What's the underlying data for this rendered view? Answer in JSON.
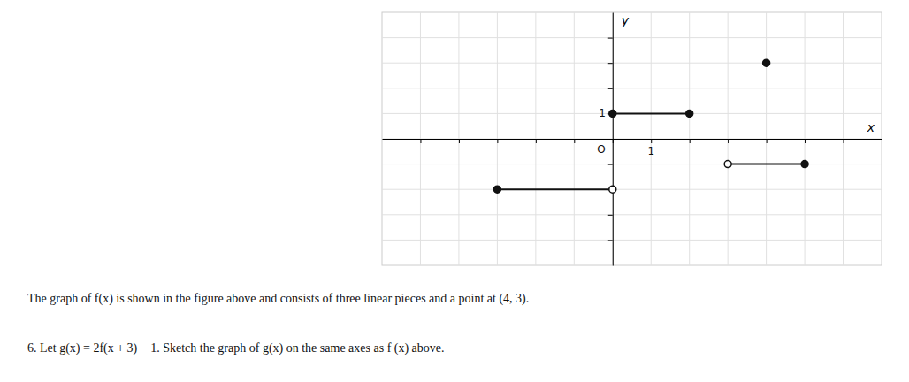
{
  "chart_data": {
    "type": "line",
    "xlabel": "x",
    "ylabel": "y",
    "xlim": [
      -6,
      7
    ],
    "ylim": [
      -5,
      5
    ],
    "xticks": [
      -5,
      -4,
      -3,
      -2,
      -1,
      0,
      1,
      2,
      3,
      4,
      5,
      6
    ],
    "yticks": [
      -4,
      -3,
      -2,
      -1,
      0,
      1,
      2,
      3,
      4
    ],
    "grid": true,
    "tick_labels": false,
    "series": [
      {
        "type": "line",
        "color": "#111111",
        "x": [
          0,
          2
        ],
        "values": [
          1,
          1
        ]
      },
      {
        "type": "line",
        "color": "#111111",
        "x": [
          3,
          5
        ],
        "values": [
          -1,
          -1
        ]
      },
      {
        "type": "line",
        "color": "#111111",
        "x": [
          -3,
          0
        ],
        "values": [
          -2,
          -2
        ]
      },
      {
        "type": "scatter",
        "marker": "filled-circle",
        "color": "#111111",
        "x": [
          0,
          2,
          5,
          -3,
          4
        ],
        "values": [
          1,
          1,
          -1,
          -2,
          3
        ]
      },
      {
        "type": "scatter",
        "marker": "open-circle",
        "color": "#111111",
        "x": [
          3,
          0
        ],
        "values": [
          -1,
          -2
        ]
      }
    ],
    "annotations": [
      {
        "text": "1",
        "x": 0,
        "y": 1
      },
      {
        "text": "O",
        "x": 0,
        "y": 0
      },
      {
        "text": "1",
        "x": 1,
        "y": 0
      },
      {
        "text": "The graph of f(x) is shown in the figure above and consists of three linear pieces and a point at (4, 3)."
      },
      {
        "text": "6.  Let g(x) = 2f(x + 3) − 1.  Sketch the graph of g(x) on the same axes as f (x) above."
      }
    ]
  }
}
